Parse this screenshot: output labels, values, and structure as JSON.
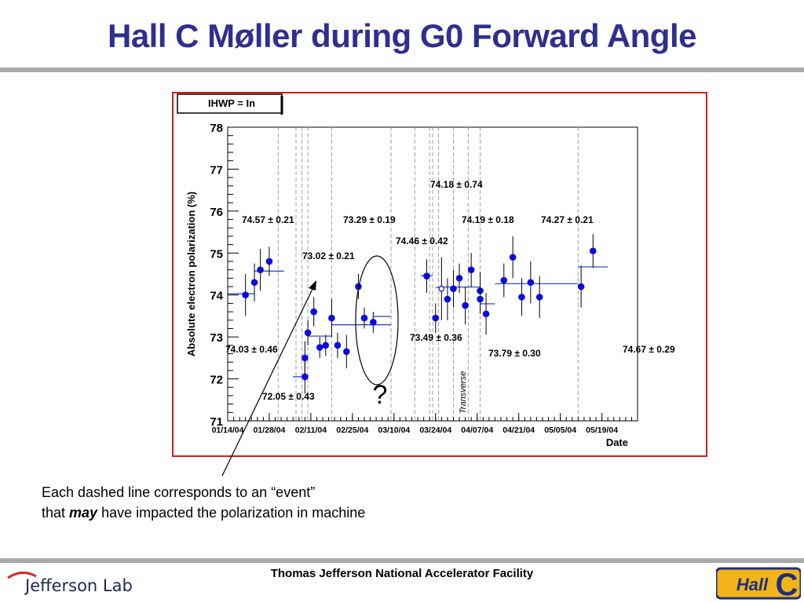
{
  "slide": {
    "title": "Hall C Møller during G0 Forward Angle",
    "footer": "Thomas Jefferson National Accelerator Facility",
    "logo_text": "Jefferson Lab",
    "logo_right_text": "Hall C"
  },
  "caption": {
    "part1": "Each dashed line corresponds to an “event”",
    "part2": "that ",
    "emphasis": "may",
    "part3": " have impacted the polarization in machine"
  },
  "annotations": {
    "question_mark": "?",
    "transverse": "Transverse"
  },
  "chart_data": {
    "type": "scatter",
    "legend_box": "IHWP = In",
    "xlabel": "Date",
    "ylabel": "Absolute electron polarization (%)",
    "ylim": [
      71,
      78
    ],
    "yticks": [
      71,
      72,
      73,
      74,
      75,
      76,
      77,
      78
    ],
    "xlim": [
      "2004-01-14",
      "2004-05-31"
    ],
    "xtick_labels": [
      "01/14/04",
      "01/28/04",
      "02/11/04",
      "02/25/04",
      "03/10/04",
      "03/24/04",
      "04/07/04",
      "04/21/04",
      "05/05/04",
      "05/19/04"
    ],
    "xtick_dates": [
      "2004-01-14",
      "2004-01-28",
      "2004-02-11",
      "2004-02-25",
      "2004-03-10",
      "2004-03-24",
      "2004-04-07",
      "2004-04-21",
      "2004-05-05",
      "2004-05-19"
    ],
    "events": [
      "2004-01-31",
      "2004-02-06",
      "2004-02-08",
      "2004-02-10",
      "2004-02-18",
      "2004-03-09",
      "2004-03-17",
      "2004-03-22",
      "2004-03-23",
      "2004-03-25",
      "2004-03-30",
      "2004-04-04",
      "2004-04-08",
      "2004-05-11"
    ],
    "points": [
      {
        "x": "2004-01-20",
        "y": 74.0,
        "err": 0.5
      },
      {
        "x": "2004-01-23",
        "y": 74.3,
        "err": 0.45
      },
      {
        "x": "2004-01-25",
        "y": 74.6,
        "err": 0.5
      },
      {
        "x": "2004-01-28",
        "y": 74.8,
        "err": 0.35
      },
      {
        "x": "2004-02-09",
        "y": 72.05,
        "err": 0.4
      },
      {
        "x": "2004-02-09",
        "y": 72.5,
        "err": 0.4
      },
      {
        "x": "2004-02-10",
        "y": 73.1,
        "err": 0.3
      },
      {
        "x": "2004-02-12",
        "y": 73.6,
        "err": 0.35
      },
      {
        "x": "2004-02-14",
        "y": 72.75,
        "err": 0.25
      },
      {
        "x": "2004-02-16",
        "y": 72.8,
        "err": 0.25
      },
      {
        "x": "2004-02-18",
        "y": 73.45,
        "err": 0.45
      },
      {
        "x": "2004-02-20",
        "y": 72.8,
        "err": 0.3
      },
      {
        "x": "2004-02-23",
        "y": 72.65,
        "err": 0.4
      },
      {
        "x": "2004-02-27",
        "y": 74.2,
        "err": 0.3
      },
      {
        "x": "2004-02-29",
        "y": 73.45,
        "err": 0.25
      },
      {
        "x": "2004-03-03",
        "y": 73.35,
        "err": 0.25
      },
      {
        "x": "2004-03-21",
        "y": 74.45,
        "err": 0.4
      },
      {
        "x": "2004-03-24",
        "y": 73.45,
        "err": 0.35
      },
      {
        "x": "2004-03-26",
        "y": 74.15,
        "open": true,
        "err": 0.75
      },
      {
        "x": "2004-03-28",
        "y": 73.9,
        "err": 0.5
      },
      {
        "x": "2004-03-30",
        "y": 74.15,
        "err": 0.45
      },
      {
        "x": "2004-04-01",
        "y": 74.4,
        "err": 0.35
      },
      {
        "x": "2004-04-03",
        "y": 73.75,
        "err": 0.45
      },
      {
        "x": "2004-04-05",
        "y": 74.6,
        "err": 0.4
      },
      {
        "x": "2004-04-08",
        "y": 74.1,
        "err": 0.45
      },
      {
        "x": "2004-04-08",
        "y": 73.9,
        "err": 0.35
      },
      {
        "x": "2004-04-10",
        "y": 73.55,
        "err": 0.5
      },
      {
        "x": "2004-04-16",
        "y": 74.35,
        "err": 0.4
      },
      {
        "x": "2004-04-19",
        "y": 74.9,
        "err": 0.5
      },
      {
        "x": "2004-04-22",
        "y": 73.95,
        "err": 0.45
      },
      {
        "x": "2004-04-25",
        "y": 74.3,
        "err": 0.5
      },
      {
        "x": "2004-04-28",
        "y": 73.95,
        "err": 0.5
      },
      {
        "x": "2004-05-12",
        "y": 74.2,
        "err": 0.5
      },
      {
        "x": "2004-05-16",
        "y": 75.05,
        "err": 0.4
      }
    ],
    "fits": [
      {
        "x0": "2004-01-14",
        "x1": "2004-01-23",
        "y": 74.03,
        "label": "74.03 ± 0.46"
      },
      {
        "x0": "2004-01-23",
        "x1": "2004-02-02",
        "y": 74.57,
        "label": "74.57 ± 0.21"
      },
      {
        "x0": "2004-02-05",
        "x1": "2004-02-10",
        "y": 72.05,
        "label": "72.05 ± 0.43"
      },
      {
        "x0": "2004-02-10",
        "x1": "2004-02-18",
        "y": 73.02,
        "label": "73.02 ± 0.21"
      },
      {
        "x0": "2004-02-18",
        "x1": "2004-03-09",
        "y": 73.29,
        "label": "73.29 ± 0.19"
      },
      {
        "x0": "2004-03-03",
        "x1": "2004-03-09",
        "y": 73.49,
        "label": "73.49 ± 0.36"
      },
      {
        "x0": "2004-03-19",
        "x1": "2004-03-23",
        "y": 74.46,
        "label": "74.46 ± 0.42"
      },
      {
        "x0": "2004-03-24",
        "x1": "2004-03-26",
        "y": 74.18,
        "label": "74.18 ± 0.74"
      },
      {
        "x0": "2004-03-26",
        "x1": "2004-04-08",
        "y": 74.19,
        "label": "74.19 ± 0.18"
      },
      {
        "x0": "2004-04-08",
        "x1": "2004-04-13",
        "y": 73.79,
        "label": "73.79 ± 0.30"
      },
      {
        "x0": "2004-04-13",
        "x1": "2004-05-11",
        "y": 74.27,
        "label": "74.27 ± 0.21"
      },
      {
        "x0": "2004-05-11",
        "x1": "2004-05-21",
        "y": 74.67,
        "label": "74.67 ± 0.29"
      }
    ],
    "colors": {
      "points": "#0a0ae6",
      "fit": "#1e3cc8",
      "frame": "#d21f1f",
      "event": "#a0a0a0"
    }
  }
}
